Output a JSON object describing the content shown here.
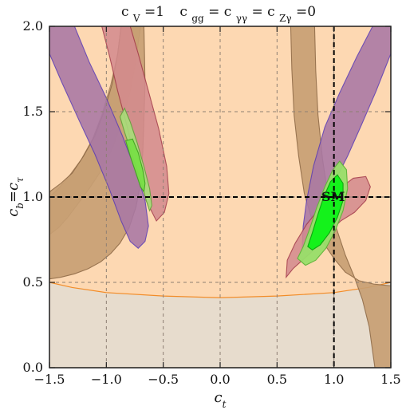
{
  "chart_data": {
    "type": "area",
    "title": "c_V=1   c_gg=c_γγ=c_Zγ=0",
    "title_parts": {
      "part1_prefix": "c",
      "part1_sub": "V",
      "part1_suffix": "=1",
      "part2_prefix": "c",
      "part2_sub": "gg",
      "part2_eq1": "=",
      "part2_c2": "c",
      "part2_sub2": "γγ",
      "part2_eq2": "=",
      "part2_c3": "c",
      "part2_sub3": "Zγ",
      "part2_suffix": "=0"
    },
    "xlabel": "c_t",
    "xlabel_parts": {
      "main": "c",
      "sub": "t"
    },
    "ylabel": "c_b=c_τ",
    "ylabel_parts": {
      "main1": "c",
      "sub1": "b",
      "eq": "=",
      "main2": "c",
      "sub2": "τ"
    },
    "xlim": [
      -1.5,
      1.5
    ],
    "ylim": [
      0.0,
      2.0
    ],
    "xticks": [
      -1.5,
      -1.0,
      -0.5,
      0.0,
      0.5,
      1.0,
      1.5
    ],
    "xtick_labels": [
      "−1.5",
      "−1.0",
      "−0.5",
      "0.0",
      "0.5",
      "1.0",
      "1.5"
    ],
    "yticks": [
      0.0,
      0.5,
      1.0,
      1.5,
      2.0
    ],
    "ytick_labels": [
      "0.0",
      "0.5",
      "1.0",
      "1.5",
      "2.0"
    ],
    "grid": true,
    "sm_point": {
      "x": 1.0,
      "y": 1.0,
      "label": "SM"
    },
    "regions": [
      {
        "kind": "lower-band",
        "fill": "#e7dccd",
        "stroke": "#8b6a42",
        "points": [
          [
            -1.5,
            0.0
          ],
          [
            1.5,
            0.0
          ],
          [
            1.5,
            0.52
          ],
          [
            -1.5,
            0.52
          ]
        ]
      },
      {
        "kind": "peach-envelope",
        "fill": "#fdd8b2",
        "stroke": "#f28c28",
        "points": [
          [
            -1.5,
            2.0
          ],
          [
            1.5,
            2.0
          ],
          [
            1.5,
            0.5
          ],
          [
            1.3,
            0.47
          ],
          [
            1.0,
            0.44
          ],
          [
            0.5,
            0.42
          ],
          [
            0.0,
            0.41
          ],
          [
            -0.5,
            0.42
          ],
          [
            -1.0,
            0.44
          ],
          [
            -1.3,
            0.47
          ],
          [
            -1.5,
            0.5
          ]
        ]
      },
      {
        "kind": "brown-left-outer",
        "fill": "#c89b75",
        "stroke": "#8f6a46",
        "opacity": 0.75,
        "points": [
          [
            -1.5,
            0.78
          ],
          [
            -1.42,
            0.82
          ],
          [
            -1.34,
            0.88
          ],
          [
            -1.25,
            0.96
          ],
          [
            -1.15,
            1.05
          ],
          [
            -1.05,
            1.15
          ],
          [
            -0.95,
            1.28
          ],
          [
            -0.86,
            1.45
          ],
          [
            -0.79,
            1.62
          ],
          [
            -0.74,
            1.8
          ],
          [
            -0.7,
            2.0
          ],
          [
            -0.87,
            2.0
          ],
          [
            -0.9,
            1.84
          ],
          [
            -0.96,
            1.66
          ],
          [
            -1.04,
            1.48
          ],
          [
            -1.12,
            1.34
          ],
          [
            -1.22,
            1.22
          ],
          [
            -1.33,
            1.12
          ],
          [
            -1.42,
            1.05
          ],
          [
            -1.5,
            1.0
          ]
        ]
      },
      {
        "kind": "brown-left-inner",
        "fill": "#c79f73",
        "stroke": "#8f6a46",
        "opacity": 0.9,
        "points": [
          [
            -1.5,
            0.52
          ],
          [
            -1.4,
            0.53
          ],
          [
            -1.28,
            0.55
          ],
          [
            -1.16,
            0.58
          ],
          [
            -1.05,
            0.62
          ],
          [
            -0.96,
            0.67
          ],
          [
            -0.88,
            0.73
          ],
          [
            -0.8,
            0.82
          ],
          [
            -0.74,
            0.94
          ],
          [
            -0.7,
            1.08
          ],
          [
            -0.68,
            1.26
          ],
          [
            -0.67,
            1.46
          ],
          [
            -0.66,
            1.66
          ],
          [
            -0.665,
            1.84
          ],
          [
            -0.67,
            2.0
          ],
          [
            -0.87,
            2.0
          ],
          [
            -0.9,
            1.84
          ],
          [
            -0.95,
            1.66
          ],
          [
            -1.02,
            1.5
          ],
          [
            -1.1,
            1.36
          ],
          [
            -1.2,
            1.24
          ],
          [
            -1.3,
            1.14
          ],
          [
            -1.4,
            1.08
          ],
          [
            -1.5,
            1.03
          ]
        ]
      },
      {
        "kind": "brown-right",
        "fill": "#c79f73",
        "stroke": "#8f6a46",
        "opacity": 0.9,
        "points": [
          [
            0.62,
            2.0
          ],
          [
            0.63,
            1.75
          ],
          [
            0.65,
            1.48
          ],
          [
            0.69,
            1.24
          ],
          [
            0.74,
            1.02
          ],
          [
            0.81,
            0.86
          ],
          [
            0.9,
            0.74
          ],
          [
            1.0,
            0.64
          ],
          [
            1.1,
            0.56
          ],
          [
            1.22,
            0.51
          ],
          [
            1.35,
            0.49
          ],
          [
            1.5,
            0.48
          ],
          [
            1.5,
            0.0
          ],
          [
            1.36,
            0.0
          ],
          [
            1.31,
            0.24
          ],
          [
            1.25,
            0.4
          ],
          [
            1.18,
            0.53
          ],
          [
            1.1,
            0.66
          ],
          [
            1.02,
            0.82
          ],
          [
            0.95,
            1.0
          ],
          [
            0.9,
            1.22
          ],
          [
            0.86,
            1.48
          ],
          [
            0.84,
            1.74
          ],
          [
            0.83,
            2.0
          ]
        ]
      },
      {
        "kind": "purple-left",
        "fill": "#a978a5",
        "stroke": "#5b3cb5",
        "opacity": 0.88,
        "points": [
          [
            -1.5,
            1.84
          ],
          [
            -1.39,
            1.67
          ],
          [
            -1.24,
            1.45
          ],
          [
            -1.1,
            1.25
          ],
          [
            -0.97,
            1.04
          ],
          [
            -0.87,
            0.86
          ],
          [
            -0.79,
            0.74
          ],
          [
            -0.72,
            0.7
          ],
          [
            -0.66,
            0.74
          ],
          [
            -0.63,
            0.83
          ],
          [
            -0.66,
            0.98
          ],
          [
            -0.74,
            1.15
          ],
          [
            -0.86,
            1.36
          ],
          [
            -1.0,
            1.58
          ],
          [
            -1.15,
            1.79
          ],
          [
            -1.28,
            2.0
          ],
          [
            -1.5,
            2.0
          ]
        ]
      },
      {
        "kind": "purple-right",
        "fill": "#a978a5",
        "stroke": "#5b3cb5",
        "opacity": 0.88,
        "points": [
          [
            0.72,
            0.68
          ],
          [
            0.79,
            0.78
          ],
          [
            0.89,
            0.92
          ],
          [
            1.0,
            1.08
          ],
          [
            1.12,
            1.24
          ],
          [
            1.24,
            1.42
          ],
          [
            1.37,
            1.62
          ],
          [
            1.5,
            1.84
          ],
          [
            1.5,
            2.0
          ],
          [
            1.34,
            2.0
          ],
          [
            1.2,
            1.82
          ],
          [
            1.05,
            1.61
          ],
          [
            0.92,
            1.41
          ],
          [
            0.82,
            1.18
          ],
          [
            0.76,
            0.98
          ],
          [
            0.73,
            0.83
          ]
        ]
      },
      {
        "kind": "red-left",
        "fill": "#d48b8e",
        "stroke": "#a2384a",
        "opacity": 0.86,
        "points": [
          [
            -1.04,
            2.0
          ],
          [
            -0.97,
            1.82
          ],
          [
            -0.9,
            1.62
          ],
          [
            -0.82,
            1.42
          ],
          [
            -0.74,
            1.2
          ],
          [
            -0.65,
            0.98
          ],
          [
            -0.56,
            0.86
          ],
          [
            -0.49,
            0.91
          ],
          [
            -0.45,
            1.02
          ],
          [
            -0.47,
            1.18
          ],
          [
            -0.54,
            1.4
          ],
          [
            -0.63,
            1.62
          ],
          [
            -0.72,
            1.84
          ],
          [
            -0.79,
            2.0
          ]
        ]
      },
      {
        "kind": "red-right",
        "fill": "#d48b8e",
        "stroke": "#a2384a",
        "opacity": 0.86,
        "points": [
          [
            0.58,
            0.53
          ],
          [
            0.64,
            0.58
          ],
          [
            0.74,
            0.64
          ],
          [
            0.84,
            0.7
          ],
          [
            0.95,
            0.79
          ],
          [
            1.06,
            0.86
          ],
          [
            1.18,
            0.91
          ],
          [
            1.28,
            0.98
          ],
          [
            1.32,
            1.06
          ],
          [
            1.28,
            1.12
          ],
          [
            1.17,
            1.11
          ],
          [
            1.03,
            1.04
          ],
          [
            0.88,
            0.94
          ],
          [
            0.76,
            0.84
          ],
          [
            0.66,
            0.73
          ],
          [
            0.59,
            0.63
          ]
        ]
      },
      {
        "kind": "green-light-left",
        "fill": "#a8de7a",
        "stroke": "#62a43b",
        "opacity": 0.9,
        "points": [
          [
            -0.88,
            1.47
          ],
          [
            -0.84,
            1.38
          ],
          [
            -0.79,
            1.28
          ],
          [
            -0.74,
            1.18
          ],
          [
            -0.69,
            1.08
          ],
          [
            -0.65,
            0.98
          ],
          [
            -0.62,
            0.92
          ],
          [
            -0.6,
            0.95
          ],
          [
            -0.62,
            1.05
          ],
          [
            -0.67,
            1.18
          ],
          [
            -0.73,
            1.32
          ],
          [
            -0.79,
            1.44
          ],
          [
            -0.84,
            1.52
          ]
        ]
      },
      {
        "kind": "green-dark-left",
        "fill": "#79e047",
        "stroke": "#42a521",
        "opacity": 0.95,
        "points": [
          [
            -0.83,
            1.33
          ],
          [
            -0.79,
            1.24
          ],
          [
            -0.74,
            1.14
          ],
          [
            -0.7,
            1.06
          ],
          [
            -0.67,
            1.03
          ],
          [
            -0.66,
            1.08
          ],
          [
            -0.68,
            1.16
          ],
          [
            -0.72,
            1.26
          ],
          [
            -0.77,
            1.34
          ]
        ]
      },
      {
        "kind": "green-light-right",
        "fill": "#98df6a",
        "stroke": "#5eb338",
        "opacity": 0.95,
        "points": [
          [
            0.68,
            0.64
          ],
          [
            0.73,
            0.71
          ],
          [
            0.79,
            0.82
          ],
          [
            0.85,
            0.94
          ],
          [
            0.92,
            1.06
          ],
          [
            0.99,
            1.16
          ],
          [
            1.05,
            1.21
          ],
          [
            1.11,
            1.16
          ],
          [
            1.12,
            1.05
          ],
          [
            1.08,
            0.92
          ],
          [
            1.01,
            0.8
          ],
          [
            0.93,
            0.7
          ],
          [
            0.84,
            0.63
          ],
          [
            0.75,
            0.6
          ]
        ]
      },
      {
        "kind": "green-dark-right",
        "fill": "#14f21b",
        "stroke": "#0ca80f",
        "opacity": 1,
        "points": [
          [
            0.77,
            0.71
          ],
          [
            0.81,
            0.79
          ],
          [
            0.86,
            0.9
          ],
          [
            0.91,
            1.0
          ],
          [
            0.97,
            1.09
          ],
          [
            1.03,
            1.13
          ],
          [
            1.08,
            1.08
          ],
          [
            1.08,
            0.98
          ],
          [
            1.03,
            0.88
          ],
          [
            0.96,
            0.79
          ],
          [
            0.88,
            0.72
          ],
          [
            0.81,
            0.69
          ]
        ]
      }
    ]
  }
}
